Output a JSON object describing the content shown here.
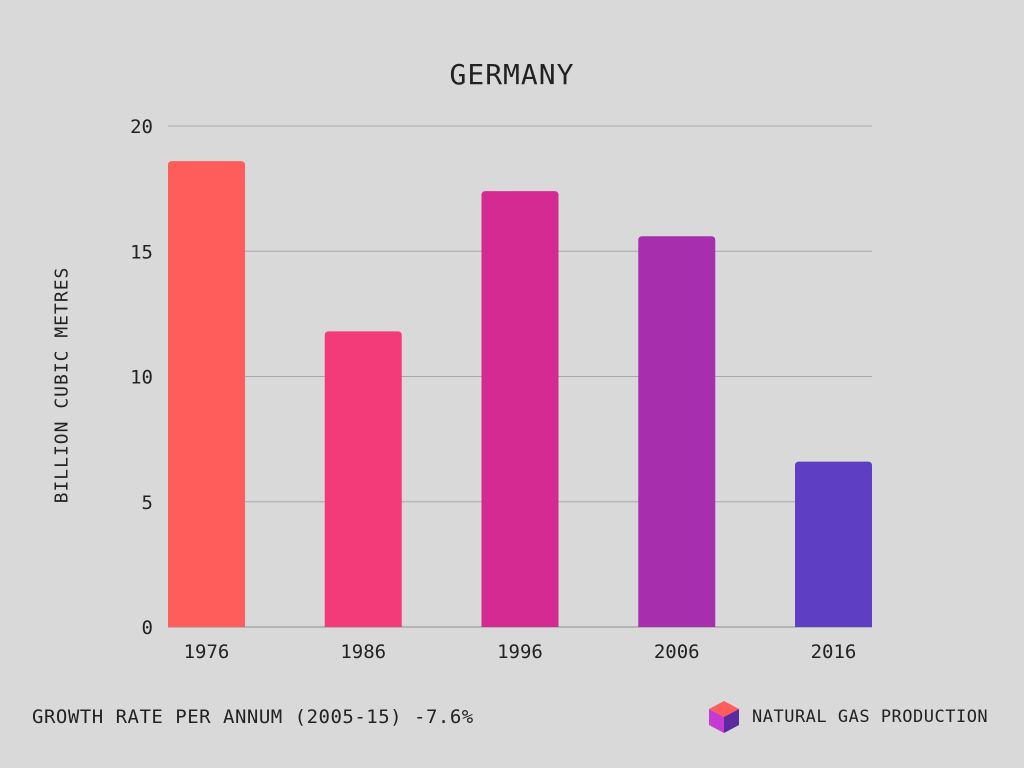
{
  "chart_data": {
    "type": "bar",
    "title": "GERMANY",
    "xlabel": "",
    "ylabel": "BILLION CUBIC METRES",
    "categories": [
      "1976",
      "1986",
      "1996",
      "2006",
      "2016"
    ],
    "values": [
      18.6,
      11.8,
      17.4,
      15.6,
      6.6
    ],
    "ylim": [
      0,
      20
    ],
    "yticks": [
      0,
      5,
      10,
      15,
      20
    ],
    "grid": true,
    "bar_colors": [
      "#ff5c5c",
      "#f23b78",
      "#d62a93",
      "#a72fad",
      "#5e3fc3"
    ],
    "legend": {
      "label": "NATURAL GAS PRODUCTION",
      "placement": "bottom-right"
    }
  },
  "footer": {
    "note": "GROWTH RATE PER ANNUM (2005-15) -7.6%"
  },
  "legend_icon": "cube-icon",
  "colors": {
    "background": "#d9d9d9",
    "gridline": "#a8a8a8",
    "text": "#222222"
  }
}
